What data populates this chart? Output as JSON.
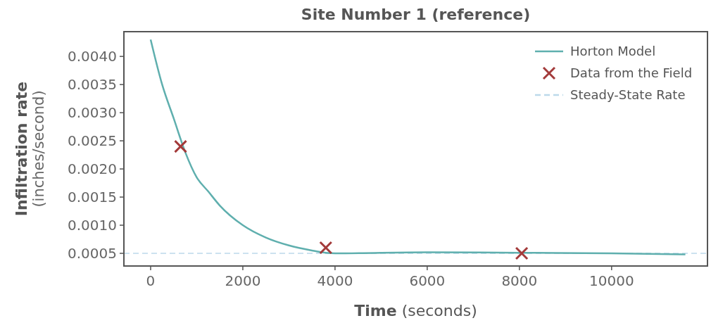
{
  "chart_data": {
    "type": "line",
    "title": "Site Number 1 (reference)",
    "xlabel": "Time (seconds)",
    "ylabel": "Infiltration rate (inches/second)",
    "xlim": [
      -580,
      12080
    ],
    "xticks": [
      0,
      2000,
      4000,
      6000,
      8000,
      10000
    ],
    "ylim": [
      0.000275,
      0.00444
    ],
    "yticks": [
      {
        "value": 0.0005,
        "label": "0.0005"
      },
      {
        "value": 0.001,
        "label": "0.0010"
      },
      {
        "value": 0.0015,
        "label": "0.0015"
      },
      {
        "value": 0.002,
        "label": "0.0020"
      },
      {
        "value": 0.0025,
        "label": "0.0025"
      },
      {
        "value": 0.003,
        "label": "0.0030"
      },
      {
        "value": 0.0035,
        "label": "0.0035"
      },
      {
        "value": 0.004,
        "label": "0.0040"
      }
    ],
    "series": [
      {
        "name": "Horton Model",
        "type": "line",
        "color": "#5fafae",
        "marker": "none",
        "x": [
          0,
          250,
          500,
          750,
          1000,
          1250,
          1500,
          2000,
          2500,
          3000,
          3500,
          3800,
          4000,
          6000,
          8000,
          10000,
          11600
        ],
        "values": [
          0.0043,
          0.0035,
          0.0029,
          0.0023,
          0.00185,
          0.0016,
          0.00135,
          0.001,
          0.00078,
          0.00064,
          0.00055,
          0.00051,
          0.0005,
          0.00052,
          0.00051,
          0.0005,
          0.00048
        ]
      },
      {
        "name": "Data from the Field",
        "type": "scatter",
        "color": "#a33a3a",
        "marker": "cross",
        "x": [
          650,
          3800,
          8050
        ],
        "values": [
          0.0024,
          0.0006,
          0.0005
        ]
      }
    ],
    "ref_lines": [
      {
        "axis": "y",
        "value": 0.0005,
        "label": "Steady-State Rate",
        "color": "#bcd9ea",
        "line_style": "dashed"
      }
    ],
    "legend": "top right",
    "grid": false
  }
}
